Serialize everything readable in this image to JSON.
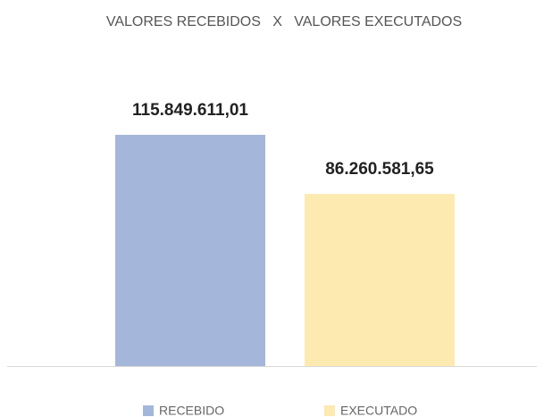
{
  "chart_data": {
    "type": "bar",
    "title": "VALORES RECEBIDOS   X   VALORES EXECUTADOS",
    "series": [
      {
        "name": "RECEBIDO",
        "color": "#a4b7da",
        "values": [
          115849611.01
        ],
        "value_labels": [
          "115.849.611,01"
        ]
      },
      {
        "name": "EXECUTADO",
        "color": "#fdeab0",
        "values": [
          86260581.65
        ],
        "value_labels": [
          "86.260.581,65"
        ]
      }
    ]
  }
}
